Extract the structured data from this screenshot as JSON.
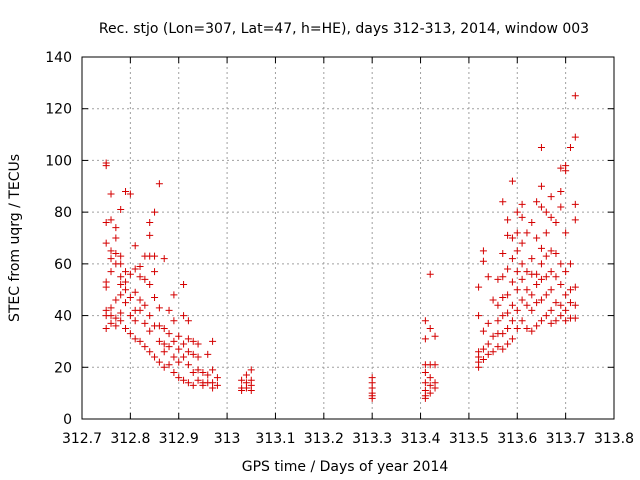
{
  "chart_data": {
    "type": "scatter",
    "title": "Rec. stjo (Lon=307, Lat=47, h=HE), days 312-313, 2014, window 003",
    "xlabel": "GPS time / Days of year 2014",
    "ylabel": "STEC from uqrg / TECUs",
    "xlim": [
      312.7,
      313.8
    ],
    "ylim": [
      0,
      140
    ],
    "xticks": [
      "312.7",
      "312.8",
      "312.9",
      "313",
      "313.1",
      "313.2",
      "313.3",
      "313.4",
      "313.5",
      "313.6",
      "313.7",
      "313.8"
    ],
    "yticks": [
      "0",
      "20",
      "40",
      "60",
      "80",
      "100",
      "120",
      "140"
    ],
    "grid": true,
    "marker": "plus",
    "color": "#d40000",
    "series": [
      {
        "points": [
          [
            312.75,
            99
          ],
          [
            312.75,
            98
          ],
          [
            312.75,
            76
          ],
          [
            312.75,
            68
          ],
          [
            312.75,
            53
          ],
          [
            312.75,
            51
          ],
          [
            312.75,
            42
          ],
          [
            312.75,
            40
          ],
          [
            312.75,
            35
          ],
          [
            312.76,
            87
          ],
          [
            312.76,
            77
          ],
          [
            312.76,
            65
          ],
          [
            312.76,
            62
          ],
          [
            312.76,
            57
          ],
          [
            312.76,
            43
          ],
          [
            312.76,
            40
          ],
          [
            312.76,
            37
          ],
          [
            312.77,
            74
          ],
          [
            312.77,
            70
          ],
          [
            312.77,
            64
          ],
          [
            312.77,
            60
          ],
          [
            312.77,
            46
          ],
          [
            312.77,
            39
          ],
          [
            312.77,
            36
          ],
          [
            312.78,
            81
          ],
          [
            312.78,
            63
          ],
          [
            312.78,
            60
          ],
          [
            312.78,
            55
          ],
          [
            312.78,
            52
          ],
          [
            312.78,
            48
          ],
          [
            312.78,
            41
          ],
          [
            312.78,
            38
          ],
          [
            312.79,
            88
          ],
          [
            312.79,
            57
          ],
          [
            312.79,
            53
          ],
          [
            312.79,
            50
          ],
          [
            312.79,
            45
          ],
          [
            312.79,
            35
          ],
          [
            312.8,
            87
          ],
          [
            312.8,
            56
          ],
          [
            312.8,
            47
          ],
          [
            312.8,
            40
          ],
          [
            312.8,
            33
          ],
          [
            312.81,
            67
          ],
          [
            312.81,
            58
          ],
          [
            312.81,
            49
          ],
          [
            312.81,
            42
          ],
          [
            312.81,
            38
          ],
          [
            312.81,
            31
          ],
          [
            312.82,
            59
          ],
          [
            312.82,
            55
          ],
          [
            312.82,
            46
          ],
          [
            312.82,
            42
          ],
          [
            312.82,
            30
          ],
          [
            312.83,
            63
          ],
          [
            312.83,
            54
          ],
          [
            312.83,
            44
          ],
          [
            312.83,
            37
          ],
          [
            312.83,
            28
          ],
          [
            312.84,
            76
          ],
          [
            312.84,
            71
          ],
          [
            312.84,
            63
          ],
          [
            312.84,
            52
          ],
          [
            312.84,
            40
          ],
          [
            312.84,
            34
          ],
          [
            312.84,
            26
          ],
          [
            312.85,
            80
          ],
          [
            312.85,
            63
          ],
          [
            312.85,
            57
          ],
          [
            312.85,
            47
          ],
          [
            312.85,
            36
          ],
          [
            312.85,
            24
          ],
          [
            312.86,
            91
          ],
          [
            312.86,
            43
          ],
          [
            312.86,
            36
          ],
          [
            312.86,
            30
          ],
          [
            312.86,
            22
          ],
          [
            312.87,
            62
          ],
          [
            312.87,
            35
          ],
          [
            312.87,
            29
          ],
          [
            312.87,
            26
          ],
          [
            312.87,
            20
          ],
          [
            312.88,
            42
          ],
          [
            312.88,
            33
          ],
          [
            312.88,
            28
          ],
          [
            312.88,
            21
          ],
          [
            312.89,
            48
          ],
          [
            312.89,
            38
          ],
          [
            312.89,
            30
          ],
          [
            312.89,
            24
          ],
          [
            312.89,
            18
          ],
          [
            312.9,
            32
          ],
          [
            312.9,
            27
          ],
          [
            312.9,
            22
          ],
          [
            312.9,
            16
          ],
          [
            312.91,
            52
          ],
          [
            312.91,
            40
          ],
          [
            312.91,
            29
          ],
          [
            312.91,
            24
          ],
          [
            312.91,
            15
          ],
          [
            312.92,
            38
          ],
          [
            312.92,
            31
          ],
          [
            312.92,
            26
          ],
          [
            312.92,
            21
          ],
          [
            312.92,
            14
          ],
          [
            312.93,
            30
          ],
          [
            312.93,
            25
          ],
          [
            312.93,
            18
          ],
          [
            312.93,
            13
          ],
          [
            312.94,
            29
          ],
          [
            312.94,
            24
          ],
          [
            312.94,
            19
          ],
          [
            312.94,
            15
          ],
          [
            312.95,
            18
          ],
          [
            312.95,
            14
          ],
          [
            312.95,
            13
          ],
          [
            312.96,
            25
          ],
          [
            312.96,
            17
          ],
          [
            312.96,
            14
          ],
          [
            312.97,
            30
          ],
          [
            312.97,
            19
          ],
          [
            312.97,
            14
          ],
          [
            312.97,
            12
          ],
          [
            312.98,
            16
          ],
          [
            312.98,
            13
          ]
        ]
      },
      {
        "points": [
          [
            313.03,
            15
          ],
          [
            313.03,
            12
          ],
          [
            313.03,
            11
          ],
          [
            313.04,
            17
          ],
          [
            313.04,
            14
          ],
          [
            313.04,
            12
          ],
          [
            313.05,
            19
          ],
          [
            313.05,
            15
          ],
          [
            313.05,
            13
          ],
          [
            313.05,
            11
          ],
          [
            313.3,
            16
          ],
          [
            313.3,
            14
          ],
          [
            313.3,
            12
          ],
          [
            313.3,
            10
          ],
          [
            313.3,
            9
          ],
          [
            313.3,
            8
          ],
          [
            313.41,
            38
          ],
          [
            313.41,
            31
          ],
          [
            313.41,
            21
          ],
          [
            313.41,
            18
          ],
          [
            313.41,
            14
          ],
          [
            313.41,
            11
          ],
          [
            313.41,
            9
          ],
          [
            313.41,
            8
          ],
          [
            313.42,
            35
          ],
          [
            313.42,
            56
          ],
          [
            313.42,
            21
          ],
          [
            313.42,
            16
          ],
          [
            313.42,
            13
          ],
          [
            313.42,
            10
          ],
          [
            313.43,
            32
          ],
          [
            313.43,
            21
          ],
          [
            313.43,
            14
          ],
          [
            313.43,
            12
          ]
        ]
      },
      {
        "points": [
          [
            313.52,
            51
          ],
          [
            313.52,
            40
          ],
          [
            313.52,
            26
          ],
          [
            313.52,
            24
          ],
          [
            313.52,
            22
          ],
          [
            313.52,
            20
          ],
          [
            313.53,
            65
          ],
          [
            313.53,
            61
          ],
          [
            313.53,
            34
          ],
          [
            313.53,
            27
          ],
          [
            313.53,
            23
          ],
          [
            313.54,
            55
          ],
          [
            313.54,
            37
          ],
          [
            313.54,
            29
          ],
          [
            313.54,
            25
          ],
          [
            313.55,
            46
          ],
          [
            313.55,
            32
          ],
          [
            313.55,
            26
          ],
          [
            313.56,
            54
          ],
          [
            313.56,
            44
          ],
          [
            313.56,
            38
          ],
          [
            313.56,
            33
          ],
          [
            313.56,
            28
          ],
          [
            313.57,
            84
          ],
          [
            313.57,
            64
          ],
          [
            313.57,
            55
          ],
          [
            313.57,
            47
          ],
          [
            313.57,
            40
          ],
          [
            313.57,
            33
          ],
          [
            313.57,
            27
          ],
          [
            313.58,
            77
          ],
          [
            313.58,
            71
          ],
          [
            313.58,
            58
          ],
          [
            313.58,
            48
          ],
          [
            313.58,
            41
          ],
          [
            313.58,
            35
          ],
          [
            313.58,
            29
          ],
          [
            313.59,
            92
          ],
          [
            313.59,
            70
          ],
          [
            313.59,
            62
          ],
          [
            313.59,
            53
          ],
          [
            313.59,
            44
          ],
          [
            313.59,
            38
          ],
          [
            313.59,
            31
          ],
          [
            313.6,
            80
          ],
          [
            313.6,
            72
          ],
          [
            313.6,
            65
          ],
          [
            313.6,
            57
          ],
          [
            313.6,
            50
          ],
          [
            313.6,
            42
          ],
          [
            313.6,
            35
          ],
          [
            313.61,
            83
          ],
          [
            313.61,
            78
          ],
          [
            313.61,
            68
          ],
          [
            313.61,
            60
          ],
          [
            313.61,
            54
          ],
          [
            313.61,
            46
          ],
          [
            313.61,
            38
          ],
          [
            313.62,
            72
          ],
          [
            313.62,
            57
          ],
          [
            313.62,
            50
          ],
          [
            313.62,
            44
          ],
          [
            313.62,
            35
          ],
          [
            313.63,
            76
          ],
          [
            313.63,
            62
          ],
          [
            313.63,
            56
          ],
          [
            313.63,
            48
          ],
          [
            313.63,
            42
          ],
          [
            313.63,
            34
          ],
          [
            313.64,
            84
          ],
          [
            313.64,
            70
          ],
          [
            313.64,
            56
          ],
          [
            313.64,
            52
          ],
          [
            313.64,
            45
          ],
          [
            313.64,
            36
          ],
          [
            313.65,
            105
          ],
          [
            313.65,
            90
          ],
          [
            313.65,
            82
          ],
          [
            313.65,
            66
          ],
          [
            313.65,
            60
          ],
          [
            313.65,
            54
          ],
          [
            313.65,
            46
          ],
          [
            313.65,
            38
          ],
          [
            313.66,
            80
          ],
          [
            313.66,
            72
          ],
          [
            313.66,
            63
          ],
          [
            313.66,
            55
          ],
          [
            313.66,
            48
          ],
          [
            313.66,
            40
          ],
          [
            313.67,
            86
          ],
          [
            313.67,
            78
          ],
          [
            313.67,
            65
          ],
          [
            313.67,
            57
          ],
          [
            313.67,
            50
          ],
          [
            313.67,
            42
          ],
          [
            313.67,
            37
          ],
          [
            313.68,
            76
          ],
          [
            313.68,
            64
          ],
          [
            313.68,
            55
          ],
          [
            313.68,
            45
          ],
          [
            313.68,
            38
          ],
          [
            313.69,
            97
          ],
          [
            313.69,
            88
          ],
          [
            313.69,
            82
          ],
          [
            313.69,
            60
          ],
          [
            313.69,
            52
          ],
          [
            313.69,
            44
          ],
          [
            313.69,
            40
          ],
          [
            313.7,
            98
          ],
          [
            313.7,
            96
          ],
          [
            313.7,
            72
          ],
          [
            313.7,
            57
          ],
          [
            313.7,
            48
          ],
          [
            313.7,
            42
          ],
          [
            313.7,
            38
          ],
          [
            313.71,
            105
          ],
          [
            313.71,
            60
          ],
          [
            313.71,
            50
          ],
          [
            313.71,
            45
          ],
          [
            313.71,
            39
          ],
          [
            313.72,
            125
          ],
          [
            313.72,
            109
          ],
          [
            313.72,
            83
          ],
          [
            313.72,
            77
          ],
          [
            313.72,
            51
          ],
          [
            313.72,
            44
          ],
          [
            313.72,
            39
          ]
        ]
      }
    ]
  }
}
